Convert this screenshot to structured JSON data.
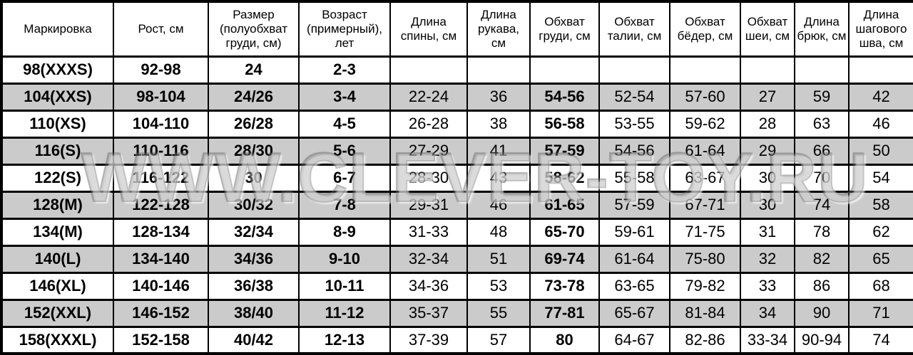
{
  "watermark": {
    "text": "WWW.CLEVER-TOY.RU"
  },
  "colors": {
    "row_shade": "#cbcbcb",
    "border": "#000000",
    "background": "#ffffff",
    "text": "#000000"
  },
  "table": {
    "columns": [
      "Маркировка",
      "Рост, см",
      "Размер (полуобхват груди, см)",
      "Возраст (примерный), лет",
      "Длина спины, см",
      "Длина рукава, см",
      "Обхват груди, см",
      "Обхват талии, см",
      "Обхват бёдер, см",
      "Обхват шеи, см",
      "Длина брюк, см",
      "Длина шагового шва, см"
    ],
    "rows": [
      [
        "98(XXXS)",
        "92-98",
        "24",
        "2-3",
        "",
        "",
        "",
        "",
        "",
        "",
        "",
        ""
      ],
      [
        "104(XXS)",
        "98-104",
        "24/26",
        "3-4",
        "22-24",
        "36",
        "54-56",
        "52-54",
        "57-60",
        "27",
        "59",
        "42"
      ],
      [
        "110(XS)",
        "104-110",
        "26/28",
        "4-5",
        "26-28",
        "38",
        "56-58",
        "53-55",
        "59-62",
        "28",
        "63",
        "46"
      ],
      [
        "116(S)",
        "110-116",
        "28/30",
        "5-6",
        "27-29",
        "41",
        "57-59",
        "54-56",
        "61-64",
        "29",
        "66",
        "50"
      ],
      [
        "122(S)",
        "116-122",
        "30",
        "6-7",
        "28-30",
        "43",
        "58-62",
        "55-58",
        "63-67",
        "30",
        "70",
        "54"
      ],
      [
        "128(M)",
        "122-128",
        "30/32",
        "7-8",
        "29-31",
        "46",
        "61-65",
        "57-59",
        "67-71",
        "30",
        "74",
        "58"
      ],
      [
        "134(M)",
        "128-134",
        "32/34",
        "8-9",
        "31-33",
        "48",
        "65-70",
        "59-61",
        "71-75",
        "31",
        "78",
        "62"
      ],
      [
        "140(L)",
        "134-140",
        "34/36",
        "9-10",
        "32-34",
        "51",
        "69-74",
        "61-64",
        "75-80",
        "32",
        "82",
        "65"
      ],
      [
        "146(XL)",
        "140-146",
        "36/38",
        "10-11",
        "34-36",
        "53",
        "73-78",
        "63-65",
        "79-82",
        "33",
        "86",
        "68"
      ],
      [
        "152(XXL)",
        "146-152",
        "38/40",
        "11-12",
        "35-37",
        "55",
        "77-81",
        "65-67",
        "81-84",
        "34",
        "90",
        "71"
      ],
      [
        "158(XXXL)",
        "152-158",
        "40/42",
        "12-13",
        "37-39",
        "57",
        "80",
        "64-67",
        "82-86",
        "33-34",
        "90-94",
        "74"
      ]
    ]
  }
}
